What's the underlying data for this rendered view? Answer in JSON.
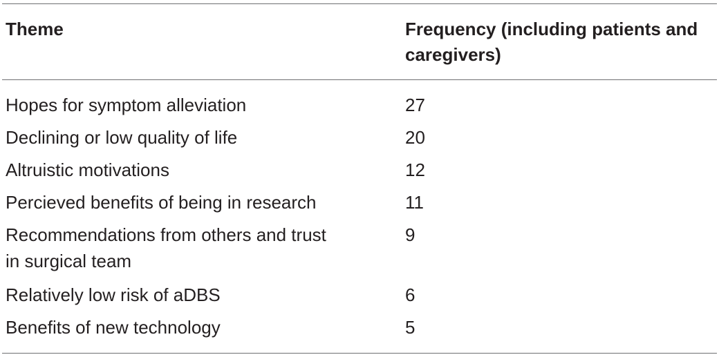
{
  "table": {
    "headers": {
      "theme": "Theme",
      "frequency": "Frequency (including patients and caregivers)"
    },
    "rows": [
      {
        "theme": "Hopes for symptom alleviation",
        "frequency": "27"
      },
      {
        "theme": "Declining or low quality of life",
        "frequency": "20"
      },
      {
        "theme": "Altruistic motivations",
        "frequency": "12"
      },
      {
        "theme": "Percieved benefits of being in research",
        "frequency": "11"
      },
      {
        "theme": "Recommendations from others and trust in surgical team",
        "frequency": "9"
      },
      {
        "theme": "Relatively low risk of aDBS",
        "frequency": "6"
      },
      {
        "theme": "Benefits of new technology",
        "frequency": "5"
      }
    ]
  }
}
